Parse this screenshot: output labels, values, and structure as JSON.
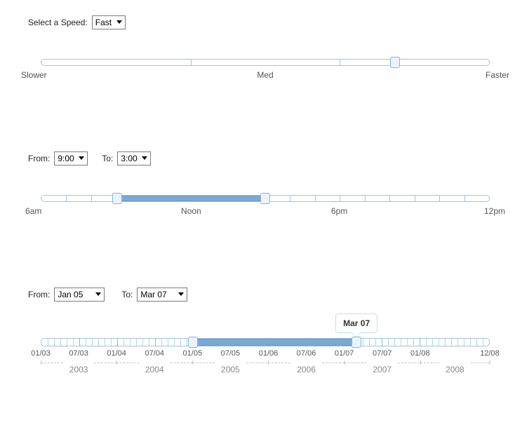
{
  "colors": {
    "track_border": "#a0c4e0",
    "fill": "#7aa9d4",
    "handle_bg": "#eaf2fa",
    "handle_border": "#8bb3d8",
    "axis_text": "#555555",
    "year_text": "#888888"
  },
  "speed": {
    "label": "Select a Speed:",
    "selected": "Fast",
    "slider": {
      "segments": 3,
      "handle_pct": 79,
      "labels": {
        "left": "Slower",
        "mid": "Med",
        "right": "Faster"
      }
    }
  },
  "time": {
    "from_label": "From:",
    "to_label": "To:",
    "from_value": "9:00",
    "to_value": "3:00",
    "slider": {
      "ticks": 18,
      "fill_start_pct": 17,
      "fill_end_pct": 50,
      "labels": [
        {
          "pct": 0,
          "text": "6am",
          "edge": "left"
        },
        {
          "pct": 33.5,
          "text": "Noon"
        },
        {
          "pct": 66.5,
          "text": "6pm"
        },
        {
          "pct": 100,
          "text": "12pm",
          "edge": "right"
        }
      ]
    }
  },
  "date": {
    "from_label": "From:",
    "to_label": "To:",
    "from_value": "Jan 05",
    "to_value": "Mar 07",
    "tooltip": "Mar 07",
    "slider": {
      "months_total": 71,
      "fill_start_pct": 33.8,
      "fill_end_pct": 70.4,
      "month_labels": [
        {
          "pct": 0,
          "text": "01/03"
        },
        {
          "pct": 8.45,
          "text": "07/03"
        },
        {
          "pct": 16.9,
          "text": "01/04"
        },
        {
          "pct": 25.35,
          "text": "07/04"
        },
        {
          "pct": 33.8,
          "text": "01/05"
        },
        {
          "pct": 42.25,
          "text": "07/05"
        },
        {
          "pct": 50.7,
          "text": "01/06"
        },
        {
          "pct": 59.15,
          "text": "07/06"
        },
        {
          "pct": 67.6,
          "text": "01/07"
        },
        {
          "pct": 76.05,
          "text": "07/07"
        },
        {
          "pct": 84.5,
          "text": "01/08"
        },
        {
          "pct": 100,
          "text": "12/08"
        }
      ],
      "years": [
        {
          "label": "2003",
          "center_pct": 8.45,
          "from_pct": 0,
          "to_pct": 16.9
        },
        {
          "label": "2004",
          "center_pct": 25.35,
          "from_pct": 16.9,
          "to_pct": 33.8
        },
        {
          "label": "2005",
          "center_pct": 42.25,
          "from_pct": 33.8,
          "to_pct": 50.7
        },
        {
          "label": "2006",
          "center_pct": 59.15,
          "from_pct": 50.7,
          "to_pct": 67.6
        },
        {
          "label": "2007",
          "center_pct": 76.05,
          "from_pct": 67.6,
          "to_pct": 84.5
        },
        {
          "label": "2008",
          "center_pct": 92.25,
          "from_pct": 84.5,
          "to_pct": 100
        }
      ]
    }
  }
}
